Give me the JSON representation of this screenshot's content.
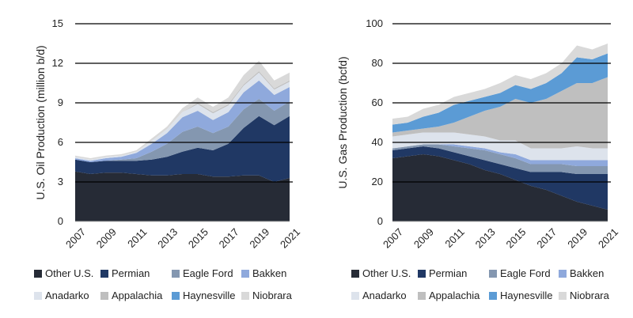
{
  "chart_data": [
    {
      "type": "area",
      "stacked": true,
      "ylabel": "U.S. Oil Production (million b/d)",
      "xlabel": "",
      "ylim": [
        0,
        15
      ],
      "yticks": [
        "0",
        "3",
        "6",
        "9",
        "12",
        "15"
      ],
      "xticks": [
        "2007",
        "2009",
        "2011",
        "2013",
        "2015",
        "2017",
        "2019",
        "2021"
      ],
      "x": [
        2007,
        2008,
        2009,
        2010,
        2011,
        2012,
        2013,
        2014,
        2015,
        2016,
        2017,
        2018,
        2019,
        2020,
        2021
      ],
      "grid": "horizontal",
      "legend_position": "bottom",
      "series": [
        {
          "name": "Other U.S.",
          "color": "#262b36",
          "values": [
            3.8,
            3.6,
            3.7,
            3.7,
            3.6,
            3.5,
            3.5,
            3.6,
            3.6,
            3.4,
            3.4,
            3.5,
            3.5,
            3.0,
            3.3
          ]
        },
        {
          "name": "Permian",
          "color": "#203864",
          "values": [
            0.9,
            0.9,
            0.9,
            0.9,
            1.0,
            1.2,
            1.4,
            1.7,
            2.0,
            2.0,
            2.5,
            3.6,
            4.5,
            4.3,
            4.7
          ]
        },
        {
          "name": "Eagle Ford",
          "color": "#8497b0",
          "values": [
            0.0,
            0.0,
            0.0,
            0.1,
            0.2,
            0.6,
            1.0,
            1.5,
            1.6,
            1.3,
            1.3,
            1.4,
            1.3,
            1.1,
            1.1
          ]
        },
        {
          "name": "Bakken",
          "color": "#8fa9dc",
          "values": [
            0.1,
            0.1,
            0.2,
            0.2,
            0.4,
            0.6,
            0.8,
            1.1,
            1.2,
            1.0,
            1.1,
            1.3,
            1.4,
            1.2,
            1.1
          ]
        },
        {
          "name": "Anadarko",
          "color": "#dde3ec",
          "values": [
            0.1,
            0.1,
            0.1,
            0.1,
            0.1,
            0.2,
            0.3,
            0.4,
            0.5,
            0.5,
            0.5,
            0.5,
            0.6,
            0.4,
            0.4
          ]
        },
        {
          "name": "Appalachia",
          "color": "#bfbfbf",
          "values": [
            0.0,
            0.0,
            0.0,
            0.0,
            0.0,
            0.0,
            0.0,
            0.0,
            0.1,
            0.1,
            0.1,
            0.1,
            0.1,
            0.1,
            0.1
          ]
        },
        {
          "name": "Haynesville",
          "color": "#5b9bd5",
          "values": [
            0.0,
            0.0,
            0.0,
            0.0,
            0.0,
            0.0,
            0.0,
            0.0,
            0.0,
            0.0,
            0.0,
            0.0,
            0.0,
            0.0,
            0.0
          ]
        },
        {
          "name": "Niobrara",
          "color": "#d9d9d9",
          "values": [
            0.1,
            0.1,
            0.1,
            0.1,
            0.1,
            0.2,
            0.2,
            0.3,
            0.4,
            0.4,
            0.5,
            0.7,
            0.8,
            0.6,
            0.6
          ]
        }
      ]
    },
    {
      "type": "area",
      "stacked": true,
      "ylabel": "U.S. Gas Production (bcfd)",
      "xlabel": "",
      "ylim": [
        0,
        100
      ],
      "yticks": [
        "0",
        "20",
        "40",
        "60",
        "80",
        "100"
      ],
      "xticks": [
        "2007",
        "2009",
        "2011",
        "2013",
        "2015",
        "2017",
        "2019",
        "2021"
      ],
      "x": [
        2007,
        2008,
        2009,
        2010,
        2011,
        2012,
        2013,
        2014,
        2015,
        2016,
        2017,
        2018,
        2019,
        2020,
        2021
      ],
      "grid": "horizontal",
      "legend_position": "bottom",
      "series": [
        {
          "name": "Other U.S.",
          "color": "#262b36",
          "values": [
            32,
            33,
            34,
            33,
            31,
            29,
            26,
            24,
            21,
            18,
            16,
            13,
            10,
            8,
            6
          ]
        },
        {
          "name": "Permian",
          "color": "#203864",
          "values": [
            4,
            4,
            4,
            4,
            4,
            4,
            5,
            5,
            6,
            7,
            9,
            12,
            14,
            16,
            18
          ]
        },
        {
          "name": "Eagle Ford",
          "color": "#8497b0",
          "values": [
            1,
            1,
            1,
            2,
            3,
            4,
            5,
            5,
            5,
            4,
            4,
            4,
            4,
            4,
            4
          ]
        },
        {
          "name": "Bakken",
          "color": "#8fa9dc",
          "values": [
            0,
            0,
            0,
            0,
            1,
            1,
            1,
            1,
            2,
            2,
            2,
            2,
            3,
            3,
            3
          ]
        },
        {
          "name": "Anadarko",
          "color": "#dde3ec",
          "values": [
            6,
            6,
            6,
            6,
            6,
            6,
            6,
            6,
            7,
            6,
            6,
            6,
            7,
            6,
            6
          ]
        },
        {
          "name": "Appalachia",
          "color": "#bfbfbf",
          "values": [
            2,
            2,
            2,
            3,
            5,
            9,
            13,
            17,
            21,
            23,
            25,
            29,
            32,
            33,
            36
          ]
        },
        {
          "name": "Haynesville",
          "color": "#5b9bd5",
          "values": [
            4,
            4,
            6,
            7,
            9,
            8,
            7,
            7,
            7,
            7,
            8,
            9,
            13,
            12,
            12
          ]
        },
        {
          "name": "Niobrara",
          "color": "#d9d9d9",
          "values": [
            3,
            3,
            4,
            4,
            4,
            4,
            4,
            5,
            5,
            5,
            5,
            5,
            6,
            5,
            5
          ]
        }
      ]
    }
  ]
}
